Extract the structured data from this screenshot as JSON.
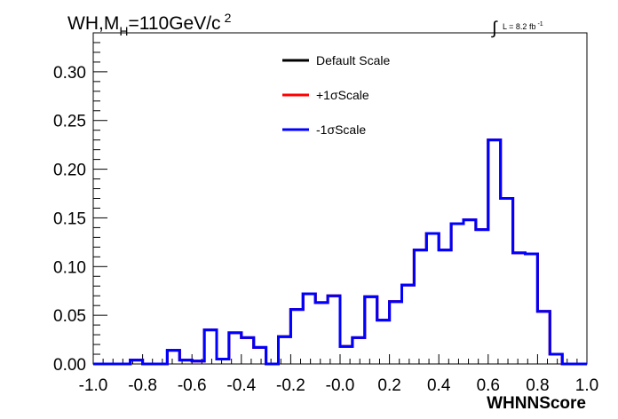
{
  "chart_data": {
    "type": "line",
    "title": {
      "main": "WH,M",
      "sub": "H",
      "rest": "=110GeV/c",
      "sup": "2"
    },
    "lumi": {
      "integral": "∫",
      "text": "L = 8.2 fb",
      "sup": "-1"
    },
    "xlabel": "WHNNScore",
    "ylabel": "",
    "xlim": [
      -1.0,
      1.0
    ],
    "ylim": [
      0,
      0.34
    ],
    "xticks": [
      -1.0,
      -0.8,
      -0.6,
      -0.4,
      -0.2,
      0.0,
      0.2,
      0.4,
      0.6,
      0.8,
      1.0
    ],
    "xtick_labels": [
      "-1.0",
      "-0.8",
      "-0.6",
      "-0.4",
      "-0.2",
      "-0.0",
      "0.2",
      "0.4",
      "0.6",
      "0.8",
      "1.0"
    ],
    "yticks": [
      0.0,
      0.05,
      0.1,
      0.15,
      0.2,
      0.25,
      0.3
    ],
    "ytick_labels": [
      "0.00",
      "0.05",
      "0.10",
      "0.15",
      "0.20",
      "0.25",
      "0.30"
    ],
    "bin_edges": [
      -1.0,
      -0.95,
      -0.9,
      -0.85,
      -0.8,
      -0.75,
      -0.7,
      -0.65,
      -0.6,
      -0.55,
      -0.5,
      -0.45,
      -0.4,
      -0.35,
      -0.3,
      -0.25,
      -0.2,
      -0.15,
      -0.1,
      -0.05,
      0.0,
      0.05,
      0.1,
      0.15,
      0.2,
      0.25,
      0.3,
      0.35,
      0.4,
      0.45,
      0.5,
      0.55,
      0.6,
      0.65,
      0.7,
      0.75,
      0.8,
      0.85,
      0.9,
      0.95,
      1.0
    ],
    "series": [
      {
        "name": "Default Scale",
        "color": "#000000",
        "values": [
          0.0,
          0.0,
          0.0,
          0.004,
          0.0,
          0.0,
          0.014,
          0.004,
          0.003,
          0.035,
          0.005,
          0.032,
          0.027,
          0.017,
          0.0,
          0.028,
          0.056,
          0.072,
          0.063,
          0.07,
          0.018,
          0.027,
          0.069,
          0.045,
          0.064,
          0.081,
          0.117,
          0.134,
          0.117,
          0.144,
          0.148,
          0.138,
          0.23,
          0.17,
          0.114,
          0.113,
          0.054,
          0.01,
          0.0,
          0.0
        ]
      },
      {
        "name": "+1σScale",
        "color": "#ff0000",
        "values": [
          0.0,
          0.0,
          0.0,
          0.004,
          0.0,
          0.0,
          0.014,
          0.004,
          0.003,
          0.035,
          0.005,
          0.032,
          0.027,
          0.017,
          0.0,
          0.028,
          0.056,
          0.072,
          0.063,
          0.07,
          0.018,
          0.027,
          0.069,
          0.045,
          0.064,
          0.081,
          0.117,
          0.134,
          0.117,
          0.144,
          0.148,
          0.138,
          0.23,
          0.17,
          0.114,
          0.113,
          0.054,
          0.01,
          0.0,
          0.0
        ]
      },
      {
        "name": "-1σScale",
        "color": "#0000ff",
        "values": [
          0.0,
          0.0,
          0.0,
          0.004,
          0.0,
          0.0,
          0.014,
          0.004,
          0.003,
          0.035,
          0.005,
          0.032,
          0.027,
          0.017,
          0.0,
          0.028,
          0.056,
          0.072,
          0.063,
          0.07,
          0.018,
          0.027,
          0.069,
          0.045,
          0.064,
          0.081,
          0.117,
          0.134,
          0.117,
          0.144,
          0.148,
          0.138,
          0.23,
          0.17,
          0.114,
          0.113,
          0.054,
          0.01,
          0.0,
          0.0
        ]
      }
    ],
    "grid": false,
    "legend_position": "top-center"
  }
}
